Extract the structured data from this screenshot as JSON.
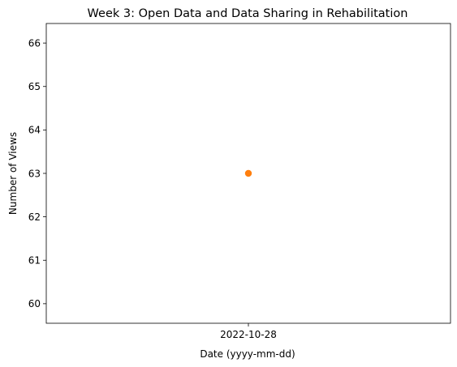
{
  "chart_data": {
    "type": "scatter",
    "title": "Week 3: Open Data and Data Sharing in Rehabilitation",
    "xlabel": "Date (yyyy-mm-dd)",
    "ylabel": "Number of Views",
    "x_ticks": [
      "2022-10-28"
    ],
    "y_ticks": [
      60,
      61,
      62,
      63,
      64,
      65,
      66
    ],
    "ylim": [
      59.55,
      66.45
    ],
    "grid": false,
    "legend": "none",
    "marker_color": "#ff7f0e",
    "points": [
      {
        "x": "2022-10-28",
        "y": 63
      }
    ]
  }
}
